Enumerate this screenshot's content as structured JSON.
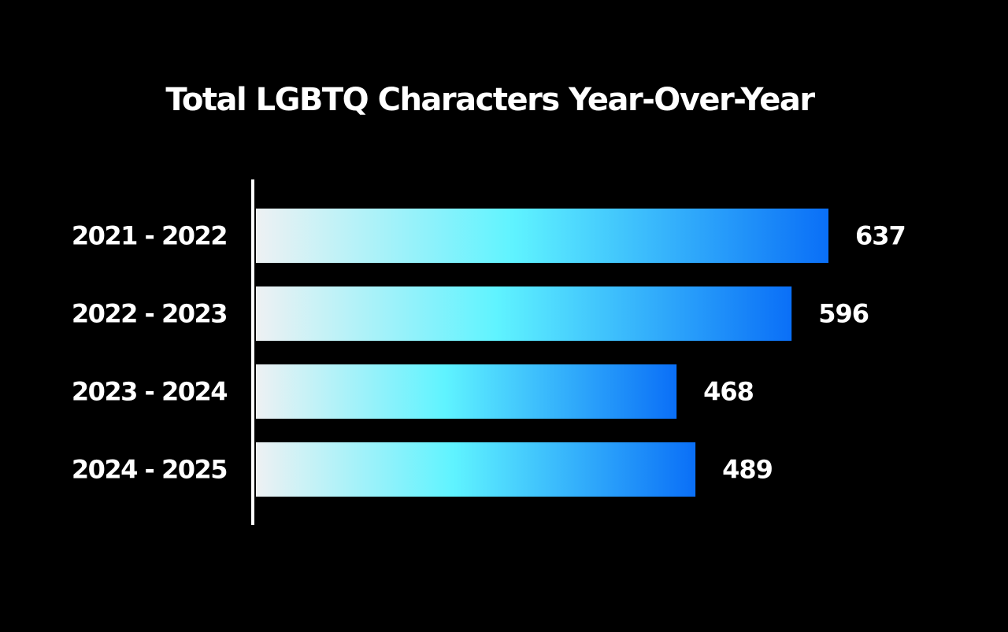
{
  "chart_data": {
    "type": "bar",
    "orientation": "horizontal",
    "title": "Total LGBTQ Characters Year-Over-Year",
    "categories": [
      "2021 - 2022",
      "2022 - 2023",
      "2023 - 2024",
      "2024 - 2025"
    ],
    "values": [
      637,
      596,
      468,
      489
    ],
    "xlabel": "",
    "ylabel": "",
    "xlim": [
      0,
      637
    ],
    "grid": false,
    "legend": "none",
    "data_labels": true
  },
  "colors": {
    "background": "#000000",
    "text": "#ffffff",
    "axis": "#ffffff",
    "bar_gradient": [
      "#eef1f3",
      "#5ff3ff",
      "#0a6ff7"
    ]
  }
}
